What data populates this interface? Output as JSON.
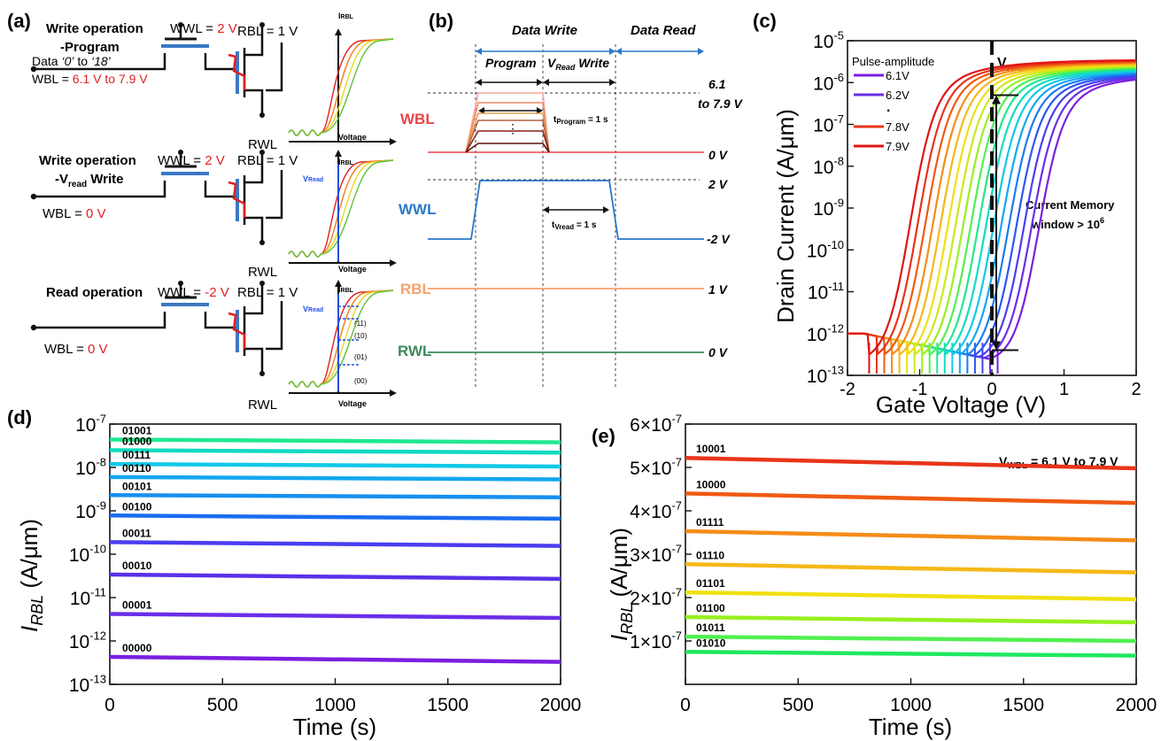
{
  "panel_labels": {
    "a": "(a)",
    "b": "(b)",
    "c": "(c)",
    "d": "(d)",
    "e": "(e)"
  },
  "panel_a": {
    "program": {
      "title1": "Write operation",
      "title2": "-Program",
      "wwl_prefix": "WWL = ",
      "wwl_value": "2 V",
      "rbl": "RBL = 1 V",
      "data_note_a": "Data ",
      "data_note_b": "‘0’",
      "data_note_c": " to ",
      "data_note_d": "‘18’",
      "wbl_prefix": "WBL = ",
      "wbl_value": "6.1 V to 7.9 V",
      "rwl": "RWL",
      "y_label": "I",
      "y_label_sub": "RBL",
      "x_label": "Voltage"
    },
    "vread_write": {
      "title1": "Write operation",
      "title2_a": "-V",
      "title2_sub": "read",
      "title2_b": " Write",
      "wwl_prefix": "WWL = ",
      "wwl_value": "2 V",
      "rbl": "RBL = 1 V",
      "wbl_prefix": "WBL = ",
      "wbl_value": "0 V",
      "rwl": "RWL",
      "y_label": "I",
      "y_label_sub": "RBL",
      "vread_a": "V",
      "vread_sub": "Read",
      "x_label": "Voltage"
    },
    "read": {
      "title": "Read operation",
      "wwl_prefix": "WWL = ",
      "wwl_value": "-2 V",
      "rbl": "RBL = 1 V",
      "wbl_prefix": "WBL = ",
      "wbl_value": "0 V",
      "rwl": "RWL",
      "y_label": "I",
      "y_label_sub": "RBL",
      "vread_a": "V",
      "vread_sub": "Read",
      "levels": [
        "(11)",
        "(10)",
        "(01)",
        "(00)"
      ],
      "x_label": "Voltage"
    }
  },
  "panel_b": {
    "data_write": "Data Write",
    "data_read": "Data Read",
    "program": "Program",
    "vread_write_a": "V",
    "vread_write_sub": "Read",
    "vread_write_b": " Write",
    "tprogram_a": "t",
    "tprogram_sub": "Program",
    "tprogram_b": " = 1 s",
    "tvread_a": "t",
    "tvread_sub": "Vread",
    "tvread_b": " = 1 s",
    "signals": [
      {
        "name": "WBL",
        "color": "#e8464a",
        "levels": [
          "6.1",
          "to 7.9 V",
          "0 V"
        ]
      },
      {
        "name": "WWL",
        "color": "#2a77c9",
        "levels": [
          "2 V",
          "-2 V"
        ]
      },
      {
        "name": "RBL",
        "color": "#f4a36a",
        "levels": [
          "1 V"
        ]
      },
      {
        "name": "RWL",
        "color": "#3f8a5e",
        "levels": [
          "0 V"
        ]
      }
    ]
  },
  "colors": {
    "palette": [
      "#7a1fe0",
      "#6a2ee8",
      "#4a3df0",
      "#2c56f0",
      "#1b7cf0",
      "#14a6f0",
      "#12c8e8",
      "#10dcc0",
      "#20e890",
      "#50f050",
      "#98f020",
      "#cce818",
      "#f0e010",
      "#f5b818",
      "#f58c18",
      "#f05a12",
      "#e8341a",
      "#e01414"
    ]
  },
  "chart_data": [
    {
      "panel": "c",
      "type": "line",
      "xlabel": "Gate Voltage (V)",
      "ylabel": "Drain Current (A/μm)",
      "scale_y": "log",
      "xlim": [
        -2,
        2
      ],
      "ylim": [
        1e-13,
        1e-05
      ],
      "x_ticks": [
        "-2",
        "-1",
        "0",
        "1",
        "2"
      ],
      "y_ticks": [
        {
          "base": "10",
          "exp": "-13"
        },
        {
          "base": "10",
          "exp": "-12"
        },
        {
          "base": "10",
          "exp": "-11"
        },
        {
          "base": "10",
          "exp": "-10"
        },
        {
          "base": "10",
          "exp": "-9"
        },
        {
          "base": "10",
          "exp": "-8"
        },
        {
          "base": "10",
          "exp": "-7"
        },
        {
          "base": "10",
          "exp": "-6"
        },
        {
          "base": "10",
          "exp": "-5"
        }
      ],
      "legend_title": "Pulse-amplitude",
      "legend_location": "top-left",
      "legend": [
        {
          "label": "6.1V",
          "color": "#7a1fe0"
        },
        {
          "label": "6.2V",
          "color": "#6a2ee8"
        },
        {
          "label": "·",
          "color": ""
        },
        {
          "label": "7.8V",
          "color": "#e8341a"
        },
        {
          "label": "7.9V",
          "color": "#e01414"
        }
      ],
      "vread_a": "V",
      "vread_sub": "read",
      "vread_x": 0,
      "annotation_a": "Current Memory",
      "annotation_b": "window > 10",
      "annotation_b_sup": "6",
      "window_top": 5e-07,
      "window_bottom": 4e-13,
      "series_count": 18,
      "curve_model": {
        "vth_first": 0.08,
        "vth_last": -1.7,
        "i_off": 2e-13,
        "i_on_first": 1.6e-06,
        "i_on_last": 3.5e-06
      }
    },
    {
      "panel": "d",
      "type": "line",
      "xlabel": "Time (s)",
      "ylabel_a": "I",
      "ylabel_sub": "RBL",
      "ylabel_b": " (A/μm)",
      "scale_y": "log",
      "xlim": [
        0,
        2000
      ],
      "ylim": [
        1e-13,
        1e-07
      ],
      "x_ticks": [
        "0",
        "500",
        "1000",
        "1500",
        "2000"
      ],
      "y_ticks": [
        {
          "base": "10",
          "exp": "-13"
        },
        {
          "base": "10",
          "exp": "-12"
        },
        {
          "base": "10",
          "exp": "-11"
        },
        {
          "base": "10",
          "exp": "-10"
        },
        {
          "base": "10",
          "exp": "-9"
        },
        {
          "base": "10",
          "exp": "-8"
        },
        {
          "base": "10",
          "exp": "-7"
        }
      ],
      "series": [
        {
          "name": "00000",
          "color": "#7a1fe0",
          "values": [
            4.3e-13,
            3.3e-13
          ]
        },
        {
          "name": "00001",
          "color": "#6a2ee8",
          "values": [
            4.2e-12,
            3.4e-12
          ]
        },
        {
          "name": "00010",
          "color": "#5a30e8",
          "values": [
            3.4e-11,
            2.7e-11
          ]
        },
        {
          "name": "00011",
          "color": "#4a3df0",
          "values": [
            1.9e-10,
            1.55e-10
          ]
        },
        {
          "name": "00100",
          "color": "#1b6cf0",
          "values": [
            7.8e-10,
            6.6e-10
          ]
        },
        {
          "name": "00101",
          "color": "#1690f0",
          "values": [
            2.3e-09,
            2.05e-09
          ]
        },
        {
          "name": "00110",
          "color": "#14a6f0",
          "values": [
            6e-09,
            5.3e-09
          ]
        },
        {
          "name": "00111",
          "color": "#12c8e8",
          "values": [
            1.2e-08,
            1.05e-08
          ]
        },
        {
          "name": "01000",
          "color": "#10dcc0",
          "values": [
            2.5e-08,
            2.2e-08
          ]
        },
        {
          "name": "01001",
          "color": "#20e890",
          "values": [
            4.4e-08,
            3.8e-08
          ]
        }
      ]
    },
    {
      "panel": "e",
      "type": "line",
      "xlabel": "Time (s)",
      "ylabel_a": "I",
      "ylabel_sub": "RBL",
      "ylabel_b": " (A/μm)",
      "scale_y": "linear",
      "xlim": [
        0,
        2000
      ],
      "ylim": [
        0,
        6e-07
      ],
      "x_ticks": [
        "0",
        "500",
        "1000",
        "1500",
        "2000"
      ],
      "y_ticks": [
        "1×10",
        "2×10",
        "3×10",
        "4×10",
        "5×10",
        "6×10"
      ],
      "y_tick_exp": "-7",
      "annotation_a": "V",
      "annotation_sub": "WBL",
      "annotation_b": " = 6.1 V to 7.9 V",
      "series": [
        {
          "name": "01010",
          "color": "#20e860",
          "values": [
            7.5e-08,
            6.6e-08
          ]
        },
        {
          "name": "01011",
          "color": "#50f050",
          "values": [
            1.1e-07,
            1e-07
          ]
        },
        {
          "name": "01100",
          "color": "#98f020",
          "values": [
            1.55e-07,
            1.43e-07
          ]
        },
        {
          "name": "01101",
          "color": "#f0e010",
          "values": [
            2.12e-07,
            1.96e-07
          ]
        },
        {
          "name": "01110",
          "color": "#f5b818",
          "values": [
            2.77e-07,
            2.58e-07
          ]
        },
        {
          "name": "01111",
          "color": "#f58c18",
          "values": [
            3.53e-07,
            3.32e-07
          ]
        },
        {
          "name": "10000",
          "color": "#f05a12",
          "values": [
            4.4e-07,
            4.18e-07
          ]
        },
        {
          "name": "10001",
          "color": "#e8341a",
          "values": [
            5.22e-07,
            4.98e-07
          ]
        }
      ]
    }
  ]
}
